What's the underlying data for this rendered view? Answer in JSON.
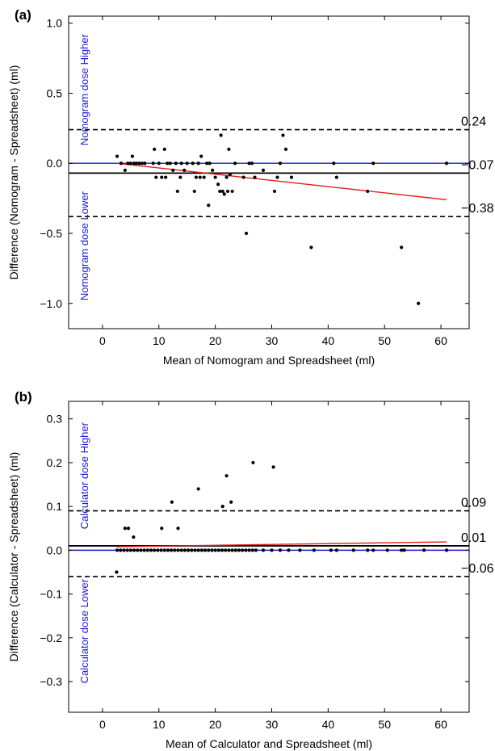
{
  "chart_data": [
    {
      "panel": "(a)",
      "type": "scatter",
      "xlabel": "Mean of Nomogram and Spreadsheet (ml)",
      "ylabel": "Difference (Nomogram - Spreadsheet) (ml)",
      "xlim": [
        -6,
        65
      ],
      "ylim": [
        -1.18,
        1.05
      ],
      "xticks": [
        0,
        10,
        20,
        30,
        40,
        50,
        60
      ],
      "yticks": [
        -1.0,
        -0.5,
        0.0,
        0.5,
        1.0
      ],
      "ytick_labels": [
        "−1.0",
        "−0.5",
        "0.0",
        "0.5",
        "1.0"
      ],
      "region_labels": {
        "upper": "Nomogram dose Higher",
        "lower": "Nomogram dose Lower"
      },
      "region_color": "#1a1ad6",
      "zero_line_color": "#1a1ad6",
      "mean_line": {
        "value": -0.07,
        "label": "−0.07"
      },
      "upper_limit": {
        "value": 0.24,
        "label": "0.24"
      },
      "lower_limit": {
        "value": -0.38,
        "label": "−0.38"
      },
      "regression_line": {
        "color": "#e41a1a",
        "x": [
          2.5,
          61
        ],
        "y": [
          0.0,
          -0.26
        ]
      },
      "points": [
        [
          2.6,
          0.05
        ],
        [
          3.3,
          0.0
        ],
        [
          4.0,
          -0.05
        ],
        [
          4.5,
          0.0
        ],
        [
          5.0,
          0.0
        ],
        [
          5.3,
          0.05
        ],
        [
          5.6,
          0.0
        ],
        [
          6.0,
          0.0
        ],
        [
          6.5,
          0.0
        ],
        [
          7.0,
          0.0
        ],
        [
          7.5,
          0.0
        ],
        [
          9.0,
          0.0
        ],
        [
          9.2,
          0.1
        ],
        [
          9.5,
          -0.1
        ],
        [
          10.0,
          0.0
        ],
        [
          10.5,
          -0.1
        ],
        [
          11.0,
          0.1
        ],
        [
          11.2,
          -0.1
        ],
        [
          11.5,
          0.0
        ],
        [
          12.0,
          0.0
        ],
        [
          12.5,
          -0.05
        ],
        [
          13.0,
          0.0
        ],
        [
          13.3,
          -0.2
        ],
        [
          13.8,
          -0.1
        ],
        [
          14.0,
          0.0
        ],
        [
          14.5,
          -0.05
        ],
        [
          15.0,
          0.0
        ],
        [
          16.0,
          0.0
        ],
        [
          16.3,
          -0.2
        ],
        [
          16.6,
          -0.1
        ],
        [
          17.0,
          0.0
        ],
        [
          17.3,
          -0.1
        ],
        [
          17.5,
          0.05
        ],
        [
          18.0,
          -0.1
        ],
        [
          18.5,
          0.0
        ],
        [
          18.8,
          -0.3
        ],
        [
          19.0,
          0.0
        ],
        [
          19.5,
          -0.05
        ],
        [
          20.0,
          -0.1
        ],
        [
          20.5,
          -0.15
        ],
        [
          20.8,
          -0.2
        ],
        [
          21.0,
          0.2
        ],
        [
          21.3,
          -0.2
        ],
        [
          21.6,
          -0.22
        ],
        [
          22.0,
          -0.1
        ],
        [
          22.2,
          -0.2
        ],
        [
          22.4,
          0.1
        ],
        [
          22.6,
          -0.08
        ],
        [
          23.0,
          -0.2
        ],
        [
          23.5,
          0.0
        ],
        [
          25.0,
          -0.1
        ],
        [
          25.5,
          -0.5
        ],
        [
          26.0,
          0.0
        ],
        [
          26.5,
          0.0
        ],
        [
          27.0,
          -0.1
        ],
        [
          28.5,
          -0.05
        ],
        [
          30.5,
          -0.2
        ],
        [
          31.0,
          -0.1
        ],
        [
          31.5,
          0.0
        ],
        [
          32.0,
          0.2
        ],
        [
          32.5,
          0.1
        ],
        [
          33.5,
          -0.1
        ],
        [
          37.0,
          -0.6
        ],
        [
          41.0,
          0.0
        ],
        [
          41.5,
          -0.1
        ],
        [
          47.0,
          -0.2
        ],
        [
          48.0,
          0.0
        ],
        [
          53.0,
          -0.6
        ],
        [
          56.0,
          -1.0
        ],
        [
          61.0,
          0.0
        ]
      ]
    },
    {
      "panel": "(b)",
      "type": "scatter",
      "xlabel": "Mean of Calculator and Spreadsheet (ml)",
      "ylabel": "Difference (Calculator - Spreadsheet) (ml)",
      "xlim": [
        -6,
        65
      ],
      "ylim": [
        -0.37,
        0.34
      ],
      "xticks": [
        0,
        10,
        20,
        30,
        40,
        50,
        60
      ],
      "yticks": [
        -0.3,
        -0.2,
        -0.1,
        0.0,
        0.1,
        0.2,
        0.3
      ],
      "ytick_labels": [
        "−0.3",
        "−0.2",
        "−0.1",
        "0.0",
        "0.1",
        "0.2",
        "0.3"
      ],
      "region_labels": {
        "upper": "Calculator dose Higher",
        "lower": "Calculator dose Lower"
      },
      "region_color": "#1a1ad6",
      "zero_line_color": "#1a1ad6",
      "mean_line": {
        "value": 0.01,
        "label": "0.01"
      },
      "upper_limit": {
        "value": 0.09,
        "label": "0.09"
      },
      "lower_limit": {
        "value": -0.06,
        "label": "−0.06"
      },
      "regression_line": {
        "color": "#e41a1a",
        "x": [
          2.5,
          61
        ],
        "y": [
          0.008,
          0.019
        ]
      },
      "points": [
        [
          2.5,
          -0.05
        ],
        [
          4.0,
          0.05
        ],
        [
          4.6,
          0.05
        ],
        [
          5.5,
          0.03
        ],
        [
          10.5,
          0.05
        ],
        [
          12.3,
          0.11
        ],
        [
          13.4,
          0.05
        ],
        [
          17.0,
          0.14
        ],
        [
          21.3,
          0.1
        ],
        [
          22.0,
          0.17
        ],
        [
          22.8,
          0.11
        ],
        [
          26.7,
          0.2
        ],
        [
          30.3,
          0.19
        ],
        [
          2.6,
          0.0
        ],
        [
          3.2,
          0.0
        ],
        [
          3.8,
          0.0
        ],
        [
          4.4,
          0.0
        ],
        [
          5.0,
          0.0
        ],
        [
          5.6,
          0.0
        ],
        [
          6.2,
          0.0
        ],
        [
          6.8,
          0.0
        ],
        [
          7.4,
          0.0
        ],
        [
          8.0,
          0.0
        ],
        [
          8.6,
          0.0
        ],
        [
          9.2,
          0.0
        ],
        [
          9.8,
          0.0
        ],
        [
          10.4,
          0.0
        ],
        [
          11.0,
          0.0
        ],
        [
          11.6,
          0.0
        ],
        [
          12.2,
          0.0
        ],
        [
          12.8,
          0.0
        ],
        [
          13.4,
          0.0
        ],
        [
          14.0,
          0.0
        ],
        [
          14.6,
          0.0
        ],
        [
          15.2,
          0.0
        ],
        [
          15.8,
          0.0
        ],
        [
          16.4,
          0.0
        ],
        [
          17.0,
          0.0
        ],
        [
          17.6,
          0.0
        ],
        [
          18.2,
          0.0
        ],
        [
          18.8,
          0.0
        ],
        [
          19.4,
          0.0
        ],
        [
          20.0,
          0.0
        ],
        [
          20.6,
          0.0
        ],
        [
          21.2,
          0.0
        ],
        [
          21.8,
          0.0
        ],
        [
          22.4,
          0.0
        ],
        [
          23.0,
          0.0
        ],
        [
          23.6,
          0.0
        ],
        [
          24.2,
          0.0
        ],
        [
          24.8,
          0.0
        ],
        [
          25.4,
          0.0
        ],
        [
          26.0,
          0.0
        ],
        [
          26.6,
          0.0
        ],
        [
          27.2,
          0.0
        ],
        [
          28.5,
          0.0
        ],
        [
          30.0,
          0.0
        ],
        [
          31.5,
          0.0
        ],
        [
          33.0,
          0.0
        ],
        [
          35.0,
          0.0
        ],
        [
          37.5,
          0.0
        ],
        [
          40.5,
          0.0
        ],
        [
          41.5,
          0.0
        ],
        [
          44.5,
          0.0
        ],
        [
          47.0,
          0.0
        ],
        [
          48.0,
          0.0
        ],
        [
          50.5,
          0.0
        ],
        [
          53.0,
          0.0
        ],
        [
          53.5,
          0.0
        ],
        [
          57.0,
          0.0
        ],
        [
          61.0,
          0.0
        ]
      ]
    }
  ]
}
